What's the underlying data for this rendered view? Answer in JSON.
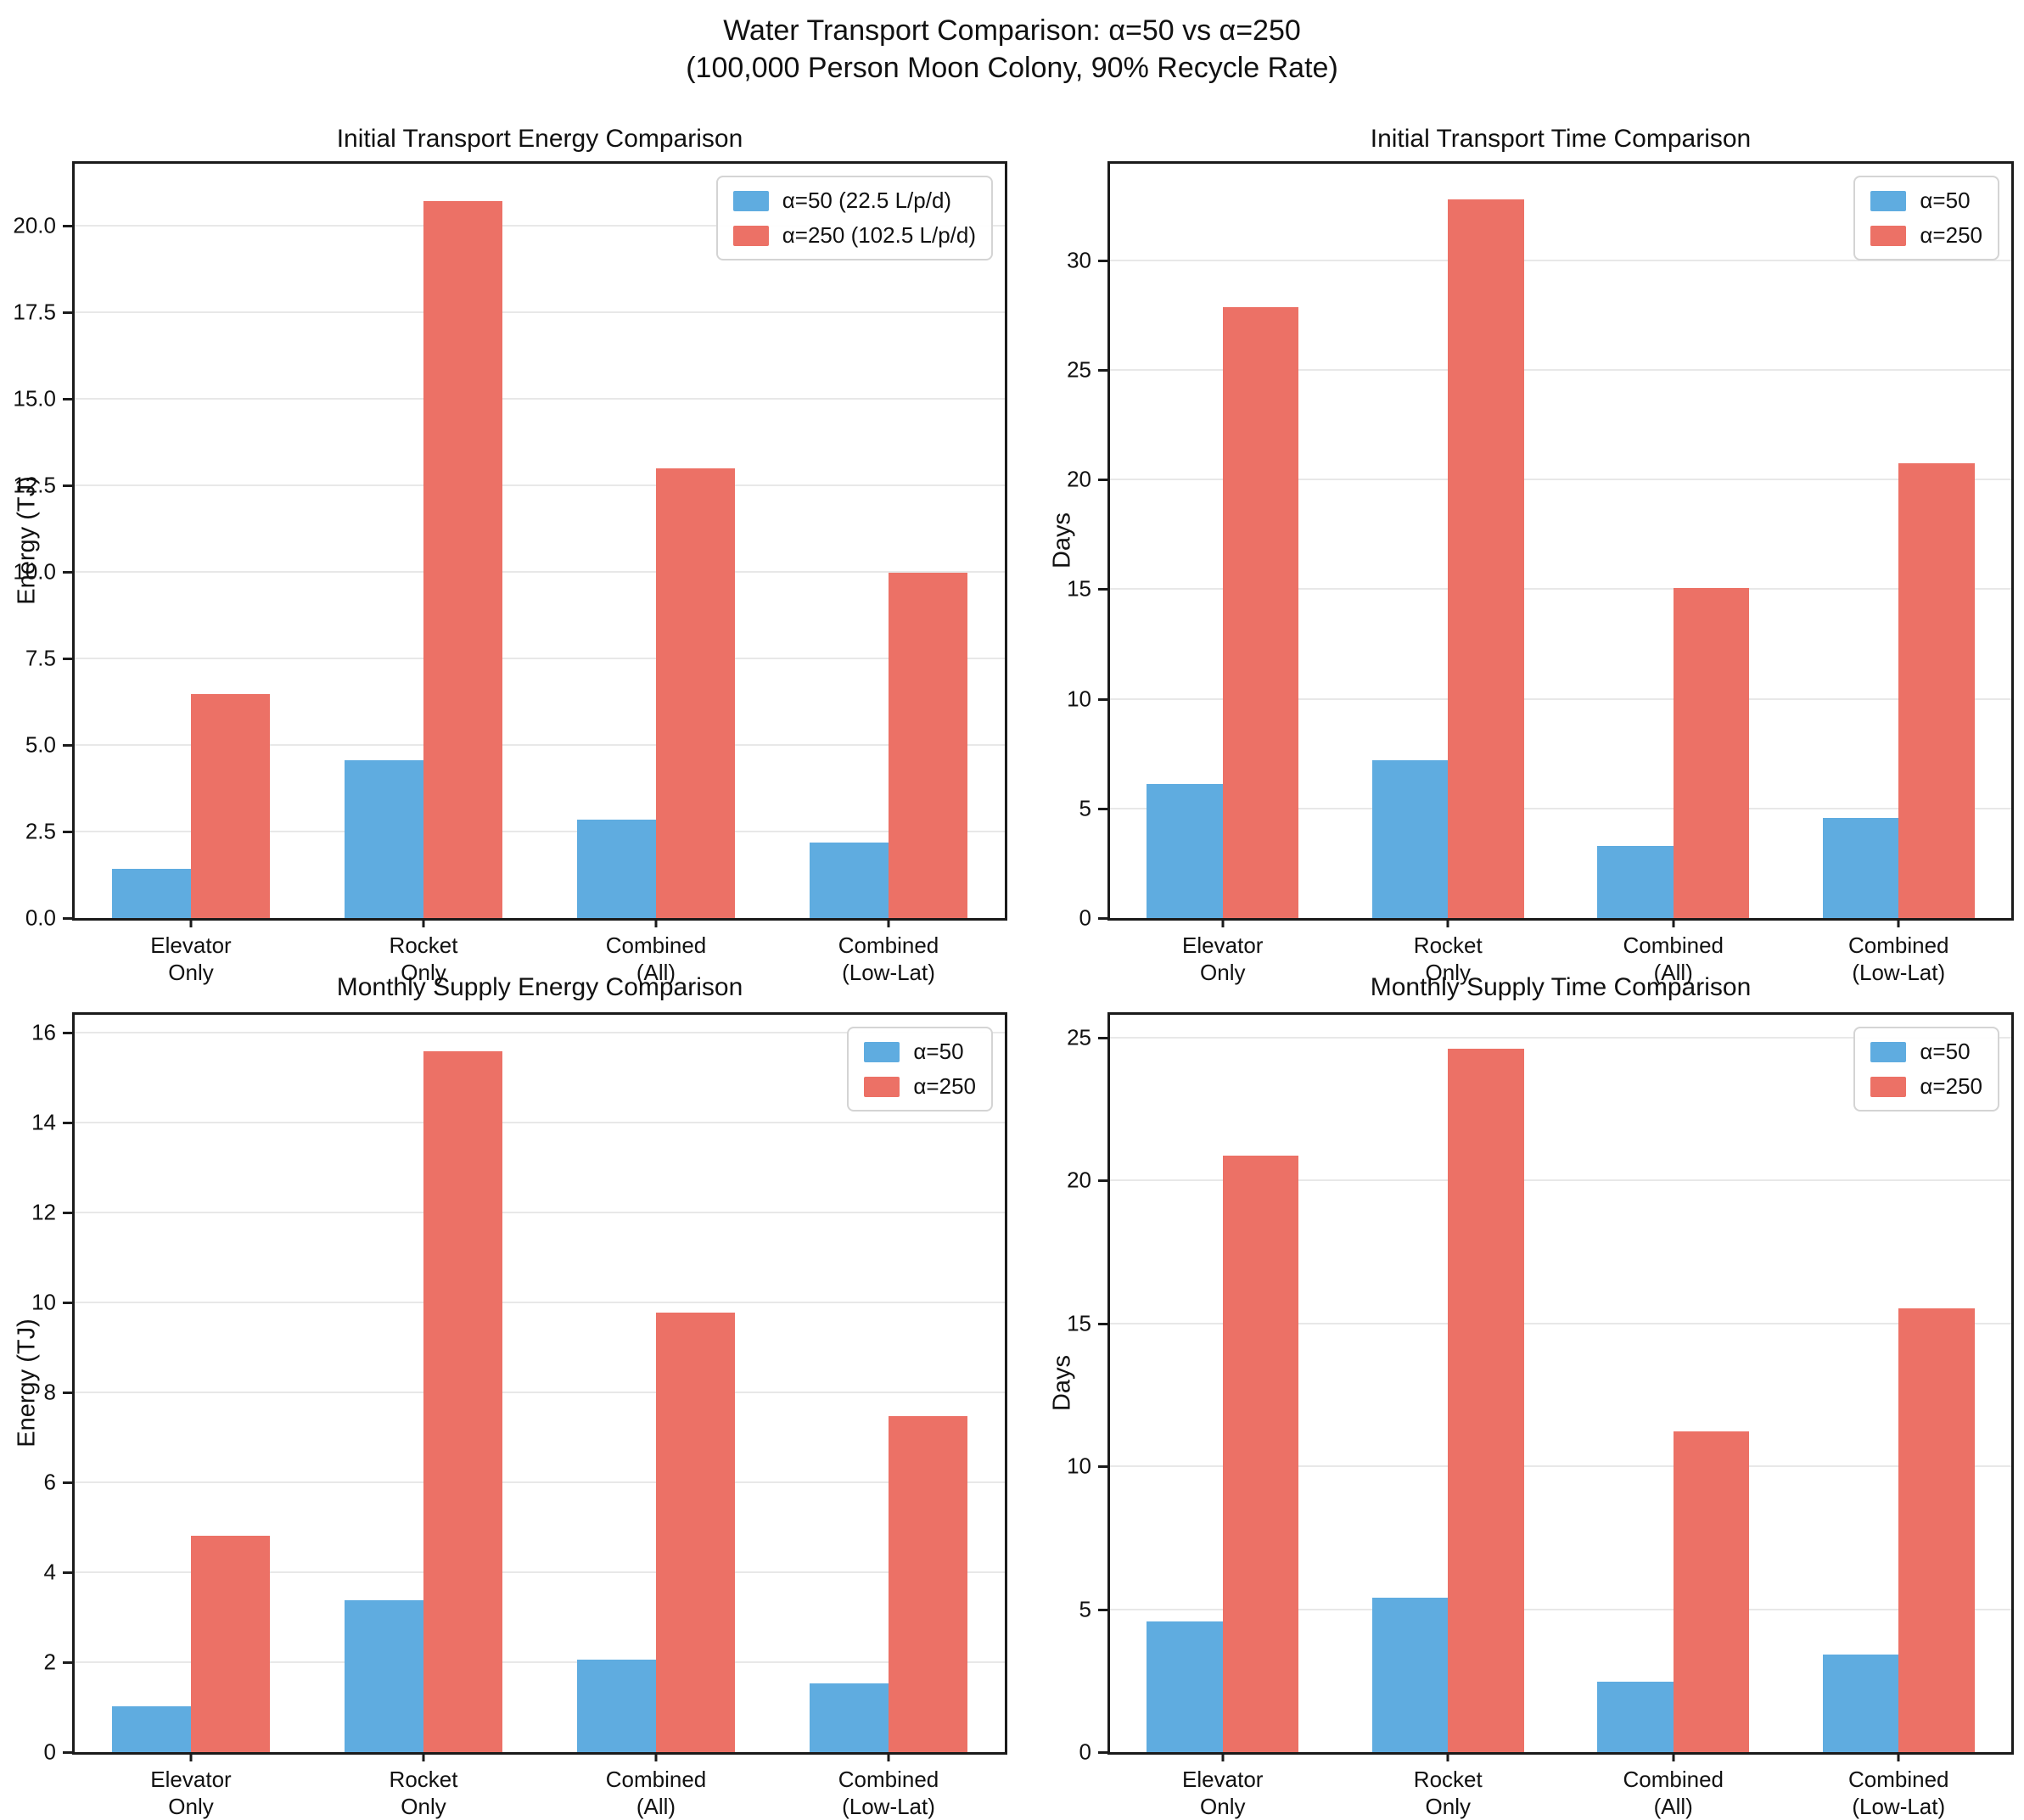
{
  "figure": {
    "title_line1": "Water Transport Comparison: α=50 vs α=250",
    "title_line2": "(100,000 Person Moon Colony, 90% Recycle Rate)"
  },
  "colors": {
    "alpha50": "#5FACE0",
    "alpha250": "#EC7166",
    "grid": "#e8e8e8",
    "axis": "#1b1b1b"
  },
  "chart_data": [
    {
      "id": "initial-energy",
      "type": "bar",
      "title": "Initial Transport Energy Comparison",
      "ylabel": "Energy (TJ)",
      "xlabel": "",
      "categories": [
        "Elevator\nOnly",
        "Rocket\nOnly",
        "Combined\n(All)",
        "Combined\n(Low-Lat)"
      ],
      "series": [
        {
          "name": "α=50 (22.5 L/p/d)",
          "color": "#5FACE0",
          "values": [
            1.42,
            4.55,
            2.85,
            2.19
          ]
        },
        {
          "name": "α=250 (102.5 L/p/d)",
          "color": "#EC7166",
          "values": [
            6.47,
            20.73,
            12.99,
            9.97
          ]
        }
      ],
      "ylim": [
        0,
        21.8
      ],
      "yticks": [
        0,
        2.5,
        5,
        7.5,
        10,
        12.5,
        15,
        17.5,
        20
      ],
      "ytick_labels": [
        "0.0",
        "2.5",
        "5.0",
        "7.5",
        "10.0",
        "12.5",
        "15.0",
        "17.5",
        "20.0"
      ],
      "grid": "horizontal",
      "legend_position": "upper right"
    },
    {
      "id": "initial-time",
      "type": "bar",
      "title": "Initial Transport Time Comparison",
      "ylabel": "Days",
      "xlabel": "",
      "categories": [
        "Elevator\nOnly",
        "Rocket\nOnly",
        "Combined\n(All)",
        "Combined\n(Low-Lat)"
      ],
      "series": [
        {
          "name": "α=50",
          "color": "#5FACE0",
          "values": [
            6.11,
            7.2,
            3.3,
            4.55
          ]
        },
        {
          "name": "α=250",
          "color": "#EC7166",
          "values": [
            27.85,
            32.79,
            15.04,
            20.73
          ]
        }
      ],
      "ylim": [
        0,
        34.4
      ],
      "yticks": [
        0,
        5,
        10,
        15,
        20,
        25,
        30
      ],
      "ytick_labels": [
        "0",
        "5",
        "10",
        "15",
        "20",
        "25",
        "30"
      ],
      "grid": "horizontal",
      "legend_position": "upper right"
    },
    {
      "id": "monthly-energy",
      "type": "bar",
      "title": "Monthly Supply Energy Comparison",
      "ylabel": "Energy (TJ)",
      "xlabel": "",
      "categories": [
        "Elevator\nOnly",
        "Rocket\nOnly",
        "Combined\n(All)",
        "Combined\n(Low-Lat)"
      ],
      "series": [
        {
          "name": "α=50",
          "color": "#5FACE0",
          "values": [
            1.02,
            3.38,
            2.06,
            1.53
          ]
        },
        {
          "name": "α=250",
          "color": "#EC7166",
          "values": [
            4.82,
            15.58,
            9.78,
            7.48
          ]
        }
      ],
      "ylim": [
        0,
        16.4
      ],
      "yticks": [
        0,
        2,
        4,
        6,
        8,
        10,
        12,
        14,
        16
      ],
      "ytick_labels": [
        "0",
        "2",
        "4",
        "6",
        "8",
        "10",
        "12",
        "14",
        "16"
      ],
      "grid": "horizontal",
      "legend_position": "upper right"
    },
    {
      "id": "monthly-time",
      "type": "bar",
      "title": "Monthly Supply Time Comparison",
      "ylabel": "Days",
      "xlabel": "",
      "categories": [
        "Elevator\nOnly",
        "Rocket\nOnly",
        "Combined\n(All)",
        "Combined\n(Low-Lat)"
      ],
      "series": [
        {
          "name": "α=50",
          "color": "#5FACE0",
          "values": [
            4.58,
            5.4,
            2.46,
            3.4
          ]
        },
        {
          "name": "α=250",
          "color": "#EC7166",
          "values": [
            20.87,
            24.6,
            11.21,
            15.52
          ]
        }
      ],
      "ylim": [
        0,
        25.8
      ],
      "yticks": [
        0,
        5,
        10,
        15,
        20,
        25
      ],
      "ytick_labels": [
        "0",
        "5",
        "10",
        "15",
        "20",
        "25"
      ],
      "grid": "horizontal",
      "legend_position": "upper right"
    }
  ]
}
